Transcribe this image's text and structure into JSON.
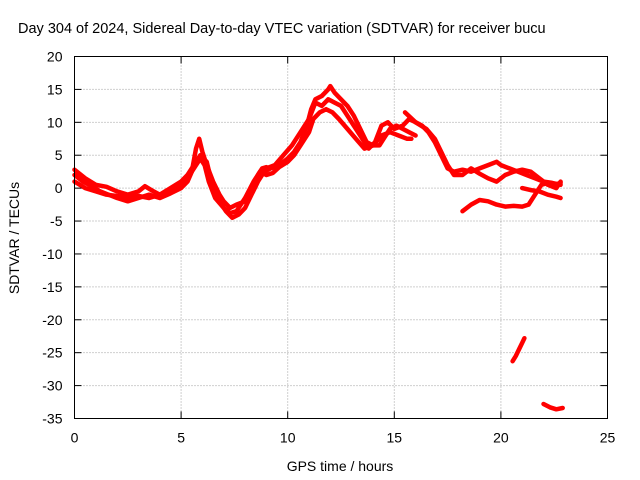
{
  "chart_data": {
    "type": "scatter",
    "title": "Day 304 of 2024, Sidereal Day-to-day VTEC variation (SDTVAR) for receiver bucu",
    "xlabel": "GPS time / hours",
    "ylabel": "SDTVAR / TECUs",
    "xlim": [
      0,
      25
    ],
    "ylim": [
      -35,
      20
    ],
    "xticks": [
      0,
      5,
      10,
      15,
      20,
      25
    ],
    "yticks": [
      20,
      15,
      10,
      5,
      0,
      -5,
      -10,
      -15,
      -20,
      -25,
      -30,
      -35
    ],
    "grid": true,
    "series_color": "#ff0000",
    "series": [
      {
        "name": "trace-1",
        "points": [
          [
            0.0,
            2.8
          ],
          [
            0.5,
            1.5
          ],
          [
            1.0,
            0.5
          ],
          [
            1.5,
            0.2
          ],
          [
            2.0,
            -0.5
          ],
          [
            2.5,
            -1.0
          ],
          [
            3.0,
            -0.5
          ],
          [
            3.3,
            0.3
          ],
          [
            3.6,
            -0.3
          ],
          [
            4.0,
            -1.0
          ],
          [
            4.5,
            -0.5
          ],
          [
            5.0,
            0.5
          ],
          [
            5.3,
            1.5
          ],
          [
            5.6,
            3.0
          ],
          [
            5.9,
            4.5
          ],
          [
            6.1,
            3.5
          ],
          [
            6.3,
            1.0
          ],
          [
            6.6,
            -1.5
          ],
          [
            7.0,
            -3.0
          ],
          [
            7.3,
            -3.8
          ],
          [
            7.6,
            -3.5
          ],
          [
            8.0,
            -1.5
          ],
          [
            8.4,
            1.0
          ],
          [
            8.7,
            2.5
          ],
          [
            9.0,
            2.0
          ],
          [
            9.3,
            2.3
          ],
          [
            9.6,
            3.2
          ],
          [
            10.0,
            4.0
          ],
          [
            10.3,
            5.0
          ],
          [
            10.6,
            6.5
          ],
          [
            11.0,
            8.5
          ],
          [
            11.2,
            10.5
          ],
          [
            11.5,
            11.5
          ],
          [
            11.8,
            12.0
          ],
          [
            12.1,
            11.5
          ],
          [
            12.4,
            10.5
          ],
          [
            12.8,
            9.0
          ],
          [
            13.2,
            7.5
          ],
          [
            13.6,
            6.0
          ],
          [
            14.0,
            6.5
          ],
          [
            14.4,
            8.0
          ],
          [
            14.8,
            8.5
          ],
          [
            15.2,
            8.0
          ],
          [
            15.6,
            7.5
          ],
          [
            15.8,
            7.5
          ]
        ]
      },
      {
        "name": "trace-2",
        "points": [
          [
            0.0,
            2.0
          ],
          [
            0.4,
            1.0
          ],
          [
            0.8,
            0.3
          ],
          [
            1.2,
            -0.5
          ],
          [
            1.6,
            -1.0
          ],
          [
            2.0,
            -1.5
          ],
          [
            2.5,
            -2.0
          ],
          [
            3.0,
            -1.5
          ],
          [
            3.5,
            -1.0
          ],
          [
            4.0,
            -1.5
          ],
          [
            4.5,
            -0.8
          ],
          [
            5.0,
            0.0
          ],
          [
            5.3,
            1.0
          ],
          [
            5.5,
            2.5
          ],
          [
            5.7,
            6.0
          ],
          [
            5.85,
            7.5
          ],
          [
            6.0,
            5.5
          ],
          [
            6.2,
            3.5
          ],
          [
            6.5,
            1.0
          ],
          [
            6.8,
            -1.0
          ],
          [
            7.0,
            -2.0
          ],
          [
            7.3,
            -3.0
          ],
          [
            7.6,
            -2.5
          ],
          [
            8.0,
            -2.0
          ],
          [
            8.3,
            0.0
          ],
          [
            8.6,
            2.0
          ],
          [
            8.8,
            3.0
          ],
          [
            9.0,
            3.2
          ]
        ]
      },
      {
        "name": "trace-3",
        "points": [
          [
            0.0,
            1.0
          ],
          [
            0.5,
            0.0
          ],
          [
            1.0,
            -0.5
          ],
          [
            1.5,
            -1.0
          ],
          [
            2.0,
            -1.2
          ],
          [
            2.5,
            -1.5
          ],
          [
            3.0,
            -1.2
          ],
          [
            3.5,
            -1.5
          ],
          [
            4.0,
            -1.0
          ],
          [
            4.5,
            0.0
          ],
          [
            5.0,
            1.0
          ],
          [
            5.3,
            2.0
          ],
          [
            5.6,
            3.5
          ],
          [
            5.9,
            5.0
          ],
          [
            6.2,
            4.0
          ],
          [
            6.5,
            0.0
          ],
          [
            6.8,
            -2.0
          ],
          [
            7.1,
            -3.5
          ],
          [
            7.4,
            -4.5
          ],
          [
            7.7,
            -4.0
          ],
          [
            8.0,
            -3.0
          ],
          [
            8.3,
            -1.0
          ],
          [
            8.6,
            1.0
          ],
          [
            8.9,
            2.5
          ],
          [
            9.2,
            3.0
          ],
          [
            9.6,
            3.5
          ],
          [
            10.0,
            4.5
          ],
          [
            10.3,
            5.5
          ],
          [
            10.6,
            7.0
          ],
          [
            10.9,
            9.5
          ],
          [
            11.1,
            12.0
          ],
          [
            11.3,
            13.5
          ],
          [
            11.6,
            14.0
          ],
          [
            11.9,
            15.0
          ],
          [
            12.0,
            15.5
          ],
          [
            12.2,
            14.5
          ],
          [
            12.5,
            13.5
          ],
          [
            12.8,
            12.5
          ],
          [
            13.1,
            11.0
          ],
          [
            13.4,
            9.0
          ],
          [
            13.7,
            7.0
          ],
          [
            14.0,
            6.5
          ],
          [
            14.3,
            6.5
          ],
          [
            14.5,
            7.5
          ],
          [
            14.8,
            9.0
          ],
          [
            15.1,
            9.5
          ],
          [
            15.4,
            9.0
          ],
          [
            15.7,
            8.5
          ],
          [
            16.0,
            8.0
          ]
        ]
      },
      {
        "name": "trace-4",
        "points": [
          [
            9.0,
            3.0
          ],
          [
            9.4,
            3.5
          ],
          [
            9.8,
            5.0
          ],
          [
            10.2,
            6.5
          ],
          [
            10.6,
            8.5
          ],
          [
            11.0,
            10.5
          ],
          [
            11.3,
            13.0
          ],
          [
            11.6,
            12.5
          ],
          [
            11.9,
            13.5
          ],
          [
            12.2,
            13.0
          ],
          [
            12.5,
            12.5
          ],
          [
            12.8,
            11.0
          ],
          [
            13.1,
            9.5
          ],
          [
            13.4,
            8.0
          ],
          [
            13.8,
            6.0
          ],
          [
            14.1,
            7.0
          ],
          [
            14.4,
            9.5
          ],
          [
            14.7,
            10.0
          ],
          [
            15.0,
            9.0
          ],
          [
            15.4,
            9.5
          ],
          [
            15.7,
            10.5
          ],
          [
            16.0,
            10.0
          ],
          [
            16.3,
            9.5
          ],
          [
            16.6,
            8.5
          ],
          [
            16.9,
            7.0
          ],
          [
            17.2,
            5.0
          ],
          [
            17.5,
            3.0
          ],
          [
            17.8,
            2.5
          ],
          [
            18.2,
            2.8
          ],
          [
            18.6,
            2.5
          ],
          [
            19.0,
            3.0
          ],
          [
            19.4,
            3.5
          ],
          [
            19.8,
            4.0
          ],
          [
            20.0,
            3.5
          ],
          [
            20.4,
            3.0
          ],
          [
            20.8,
            2.5
          ],
          [
            21.2,
            2.0
          ],
          [
            21.6,
            1.5
          ],
          [
            22.0,
            1.0
          ],
          [
            22.4,
            0.8
          ],
          [
            22.8,
            0.5
          ]
        ]
      },
      {
        "name": "trace-5",
        "points": [
          [
            15.5,
            11.5
          ],
          [
            16.0,
            10.0
          ],
          [
            16.5,
            9.0
          ],
          [
            16.9,
            7.5
          ],
          [
            17.2,
            5.5
          ],
          [
            17.5,
            3.5
          ],
          [
            17.8,
            2.0
          ],
          [
            18.2,
            2.0
          ],
          [
            18.6,
            3.0
          ],
          [
            19.0,
            2.2
          ],
          [
            19.4,
            1.5
          ],
          [
            19.8,
            1.0
          ],
          [
            20.2,
            2.0
          ],
          [
            20.6,
            2.5
          ],
          [
            21.0,
            2.8
          ],
          [
            21.4,
            2.5
          ],
          [
            21.8,
            1.5
          ],
          [
            22.2,
            0.5
          ],
          [
            22.6,
            0.0
          ],
          [
            22.8,
            1.0
          ]
        ]
      },
      {
        "name": "trace-6",
        "points": [
          [
            21.0,
            0.0
          ],
          [
            21.4,
            -0.3
          ],
          [
            21.8,
            -0.5
          ],
          [
            22.2,
            -1.0
          ],
          [
            22.6,
            -1.3
          ],
          [
            22.8,
            -1.5
          ]
        ]
      },
      {
        "name": "trace-7",
        "points": [
          [
            18.2,
            -3.5
          ],
          [
            18.6,
            -2.5
          ],
          [
            19.0,
            -1.8
          ],
          [
            19.4,
            -2.0
          ],
          [
            19.8,
            -2.5
          ],
          [
            20.2,
            -2.8
          ],
          [
            20.6,
            -2.7
          ],
          [
            21.0,
            -2.8
          ],
          [
            21.3,
            -2.5
          ],
          [
            21.6,
            -1.0
          ],
          [
            21.9,
            0.5
          ],
          [
            22.2,
            0.8
          ],
          [
            22.5,
            0.5
          ],
          [
            22.8,
            0.8
          ]
        ]
      },
      {
        "name": "trace-8",
        "points": [
          [
            20.55,
            -26.3
          ],
          [
            20.7,
            -25.5
          ],
          [
            20.85,
            -24.5
          ],
          [
            21.0,
            -23.5
          ],
          [
            21.1,
            -22.8
          ]
        ]
      },
      {
        "name": "trace-9",
        "points": [
          [
            22.0,
            -32.8
          ],
          [
            22.3,
            -33.3
          ],
          [
            22.6,
            -33.6
          ],
          [
            22.9,
            -33.4
          ]
        ]
      }
    ]
  }
}
